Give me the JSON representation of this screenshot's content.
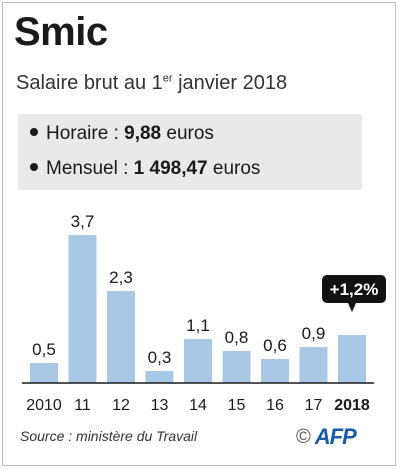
{
  "title": "Smic",
  "subtitle": {
    "prefix": "Salaire brut au 1",
    "sup": "er",
    "suffix": " janvier 2018"
  },
  "info": {
    "hourly": {
      "label": "Horaire : ",
      "value": "9,88",
      "unit": " euros"
    },
    "monthly": {
      "label": "Mensuel  : ",
      "value": "1 498,47",
      "unit": " euros"
    }
  },
  "chart_data": {
    "type": "bar",
    "categories": [
      "2010",
      "11",
      "12",
      "13",
      "14",
      "15",
      "16",
      "17",
      "2018"
    ],
    "values": [
      0.5,
      3.7,
      2.3,
      0.3,
      1.1,
      0.8,
      0.6,
      0.9,
      1.2
    ],
    "data_labels": [
      "0,5",
      "3,7",
      "2,3",
      "0,3",
      "1,1",
      "0,8",
      "0,6",
      "0,9",
      ""
    ],
    "highlight": {
      "category": "2018",
      "label": "+1,2%"
    },
    "bar_color": "#a9c8e6",
    "ylim": [
      0,
      4
    ],
    "grid": false
  },
  "source": "Source : ministère du Travail",
  "logo": {
    "copyright": "©",
    "brand": "AFP"
  }
}
